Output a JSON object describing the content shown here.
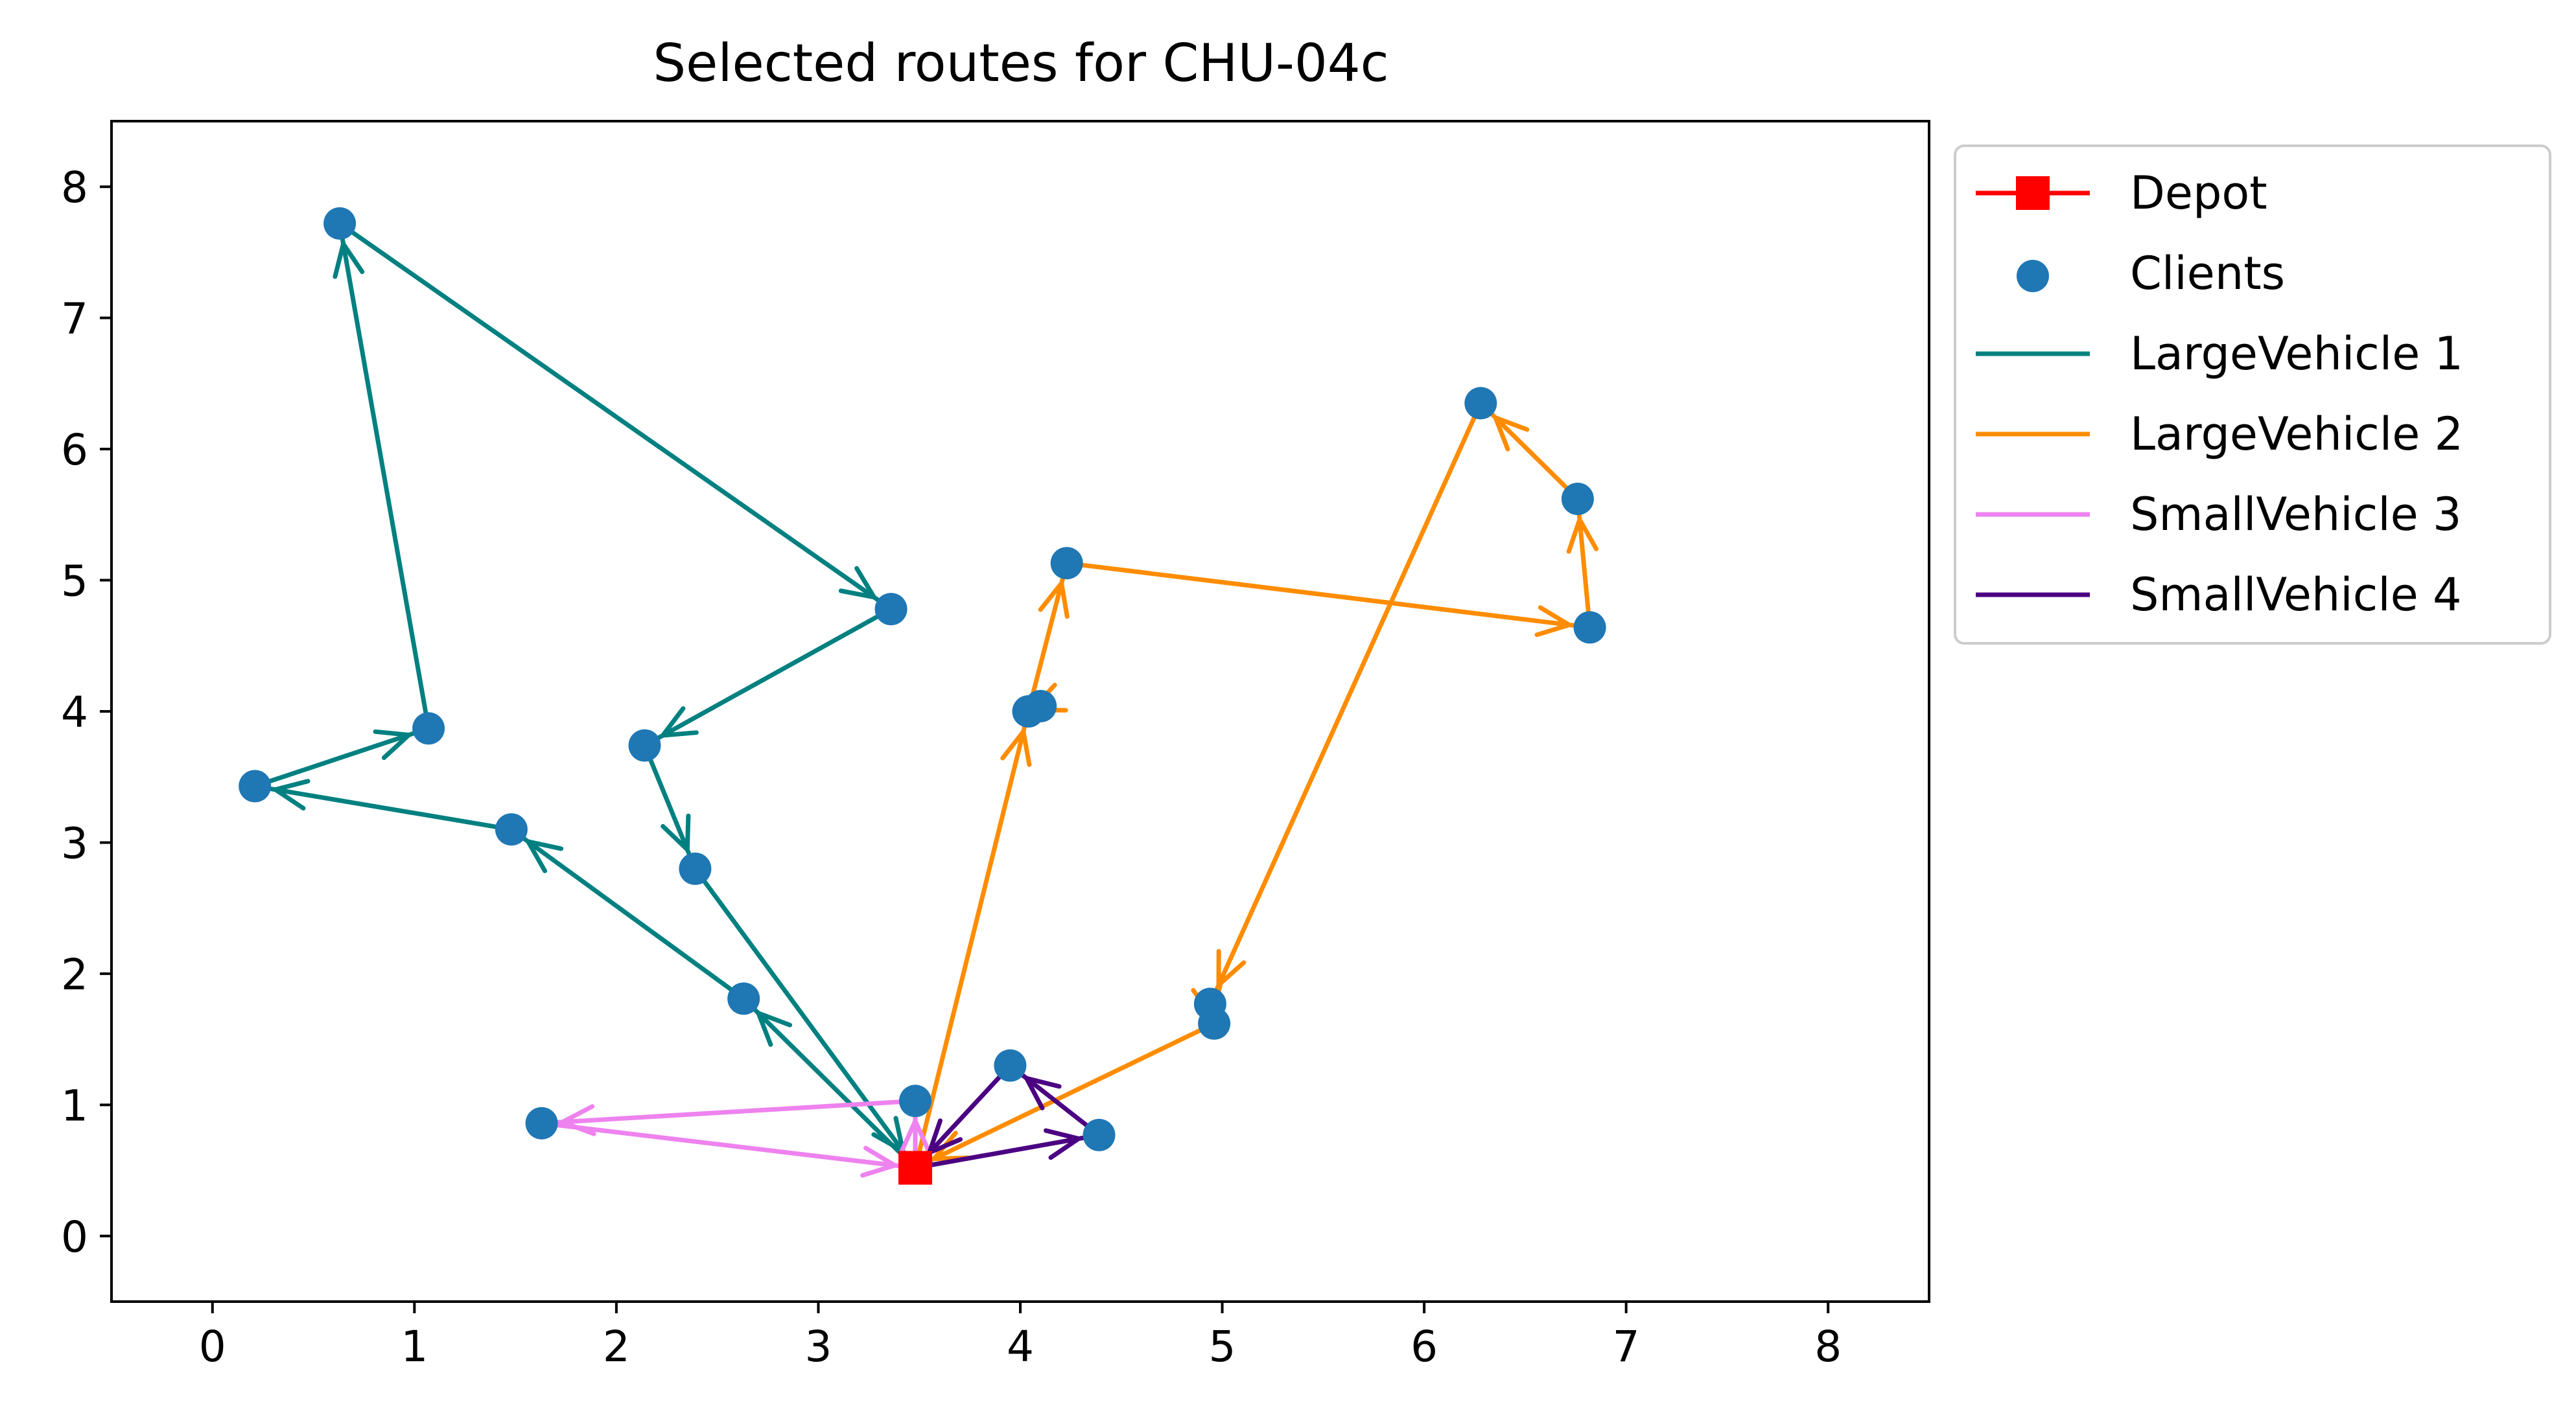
{
  "chart_data": {
    "type": "scatter",
    "title": "Selected routes for CHU-04c",
    "xlabel": "",
    "ylabel": "",
    "xlim": [
      -0.5,
      8.5
    ],
    "ylim": [
      -0.5,
      8.5
    ],
    "xticks": [
      "0",
      "1",
      "2",
      "3",
      "4",
      "5",
      "6",
      "7",
      "8"
    ],
    "yticks": [
      "0",
      "1",
      "2",
      "3",
      "4",
      "5",
      "6",
      "7",
      "8"
    ],
    "grid": false,
    "legend_position": "outside-upper-right",
    "depot": {
      "name": "Depot",
      "x": 3.48,
      "y": 0.52,
      "color": "#ff0000",
      "marker": "square"
    },
    "clients": {
      "name": "Clients",
      "color": "#1f77b4",
      "points": [
        [
          0.63,
          7.72
        ],
        [
          3.36,
          4.78
        ],
        [
          2.14,
          3.74
        ],
        [
          1.07,
          3.87
        ],
        [
          0.21,
          3.43
        ],
        [
          1.48,
          3.1
        ],
        [
          2.39,
          2.8
        ],
        [
          2.63,
          1.81
        ],
        [
          3.48,
          1.03
        ],
        [
          1.63,
          0.86
        ],
        [
          3.95,
          1.3
        ],
        [
          4.39,
          0.77
        ],
        [
          4.04,
          4.0
        ],
        [
          4.1,
          4.04
        ],
        [
          4.23,
          5.13
        ],
        [
          6.82,
          4.64
        ],
        [
          6.76,
          5.62
        ],
        [
          6.28,
          6.35
        ],
        [
          4.94,
          1.77
        ],
        [
          4.96,
          1.62
        ]
      ]
    },
    "series": [
      {
        "name": "LargeVehicle 1",
        "color": "#008080",
        "route": [
          [
            3.48,
            0.52
          ],
          [
            2.63,
            1.81
          ],
          [
            1.48,
            3.1
          ],
          [
            0.21,
            3.43
          ],
          [
            1.07,
            3.87
          ],
          [
            0.63,
            7.72
          ],
          [
            3.36,
            4.78
          ],
          [
            2.14,
            3.74
          ],
          [
            2.39,
            2.8
          ],
          [
            3.48,
            0.52
          ]
        ]
      },
      {
        "name": "LargeVehicle 2",
        "color": "#ff8c00",
        "route": [
          [
            3.48,
            0.52
          ],
          [
            4.04,
            4.0
          ],
          [
            4.23,
            5.13
          ],
          [
            6.82,
            4.64
          ],
          [
            6.76,
            5.62
          ],
          [
            6.28,
            6.35
          ],
          [
            4.94,
            1.77
          ],
          [
            4.96,
            1.62
          ],
          [
            3.48,
            0.52
          ]
        ],
        "extra_segments": [
          [
            [
              4.1,
              4.04
            ],
            [
              4.04,
              4.0
            ]
          ]
        ]
      },
      {
        "name": "SmallVehicle 3",
        "color": "#ee82ee",
        "route": [
          [
            3.48,
            0.52
          ],
          [
            3.48,
            1.03
          ],
          [
            1.63,
            0.86
          ],
          [
            3.48,
            0.52
          ]
        ]
      },
      {
        "name": "SmallVehicle 4",
        "color": "#4b0082",
        "route": [
          [
            3.48,
            0.52
          ],
          [
            4.39,
            0.77
          ],
          [
            3.95,
            1.3
          ],
          [
            3.48,
            0.52
          ]
        ]
      }
    ]
  }
}
